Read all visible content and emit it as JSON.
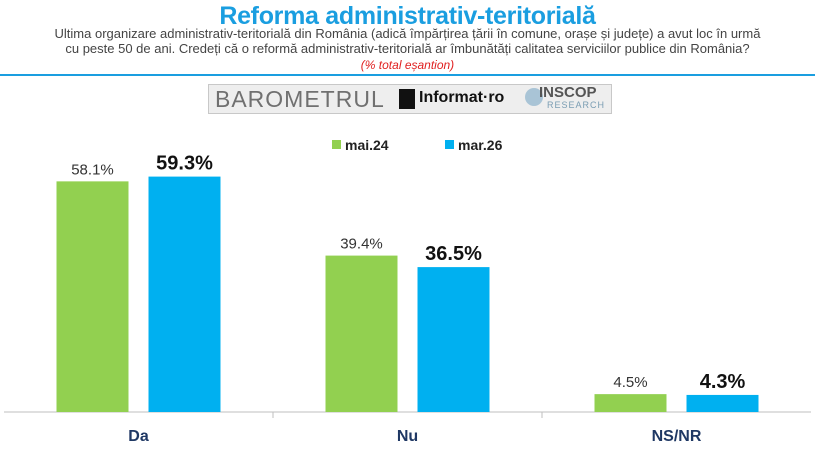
{
  "header": {
    "title": "Reforma administrativ-teritorială",
    "question_line1": "Ultima organizare administrativ-teritorială din România (adică împărțirea țării în comune, orașe și județe) a avut loc în urmă",
    "question_line2": "cu peste 50 de ani. Credeți că o reformă administrativ-teritorială ar îmbunătăți calitatea serviciilor publice din România?",
    "note": "(% total eșantion)"
  },
  "logos": {
    "barometru": "BAROMETRUL",
    "informat": "Informat·ro",
    "inscop": "INSCOP",
    "research": "RESEARCH"
  },
  "colors": {
    "series1": "#92d050",
    "series2": "#00b0f0",
    "title": "#1a9ee0",
    "note": "#e02020"
  },
  "chart_data": {
    "type": "bar",
    "categories": [
      "Da",
      "Nu",
      "NS/NR"
    ],
    "series": [
      {
        "name": "mai.24",
        "values": [
          58.1,
          39.4,
          4.5
        ],
        "labels": [
          "58.1%",
          "39.4%",
          "4.5%"
        ],
        "color": "#92d050"
      },
      {
        "name": "mar.26",
        "values": [
          59.3,
          36.5,
          4.3
        ],
        "labels": [
          "59.3%",
          "36.5%",
          "4.3%"
        ],
        "color": "#00b0f0"
      }
    ],
    "ylim": [
      0,
      66
    ],
    "legend": "top-center",
    "grid": false
  }
}
